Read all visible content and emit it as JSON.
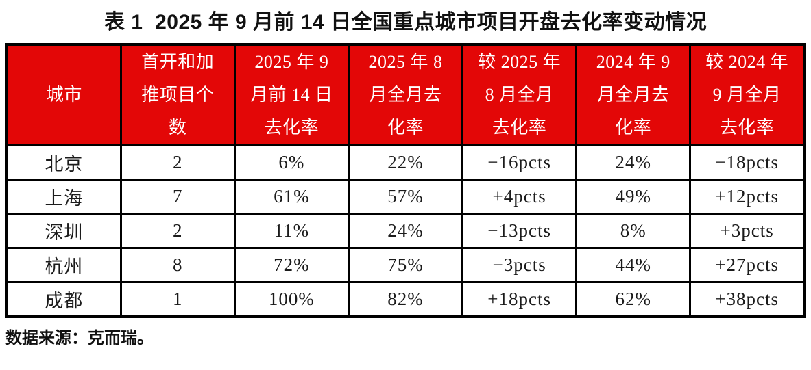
{
  "page": {
    "title": "表 1  2025 年 9 月前 14 日全国重点城市项目开盘去化率变动情况",
    "source_note": "数据来源：克而瑞。"
  },
  "colors": {
    "header_bg": "#e30707",
    "header_text": "#ffffff",
    "body_text": "#1b1b1b",
    "border": "#000000",
    "page_bg": "#ffffff"
  },
  "table": {
    "header_lines": [
      "城市",
      "首开和加\n推项目个\n数",
      "2025 年 9\n月前 14 日\n去化率",
      "2025 年 8\n月全月去\n化率",
      "较 2025 年\n8 月全月\n去化率",
      "2024 年 9\n月全月去\n化率",
      "较 2024 年\n9 月全月\n去化率"
    ]
  },
  "chart_data": {
    "type": "table",
    "title": "表 1  2025 年 9 月前 14 日全国重点城市项目开盘去化率变动情况",
    "columns": [
      "城市",
      "首开和加推项目个数",
      "2025 年 9 月前 14 日去化率",
      "2025 年 8 月全月去化率",
      "较 2025 年 8 月全月去化率",
      "2024 年 9 月全月去化率",
      "较 2024 年 9 月全月去化率"
    ],
    "rows": [
      [
        "北京",
        "2",
        "6%",
        "22%",
        "−16pcts",
        "24%",
        "−18pcts"
      ],
      [
        "上海",
        "7",
        "61%",
        "57%",
        "+4pcts",
        "49%",
        "+12pcts"
      ],
      [
        "深圳",
        "2",
        "11%",
        "24%",
        "−13pcts",
        "8%",
        "+3pcts"
      ],
      [
        "杭州",
        "8",
        "72%",
        "75%",
        "−3pcts",
        "44%",
        "+27pcts"
      ],
      [
        "成都",
        "1",
        "100%",
        "82%",
        "+18pcts",
        "62%",
        "+38pcts"
      ]
    ],
    "source": "数据来源：克而瑞。"
  }
}
